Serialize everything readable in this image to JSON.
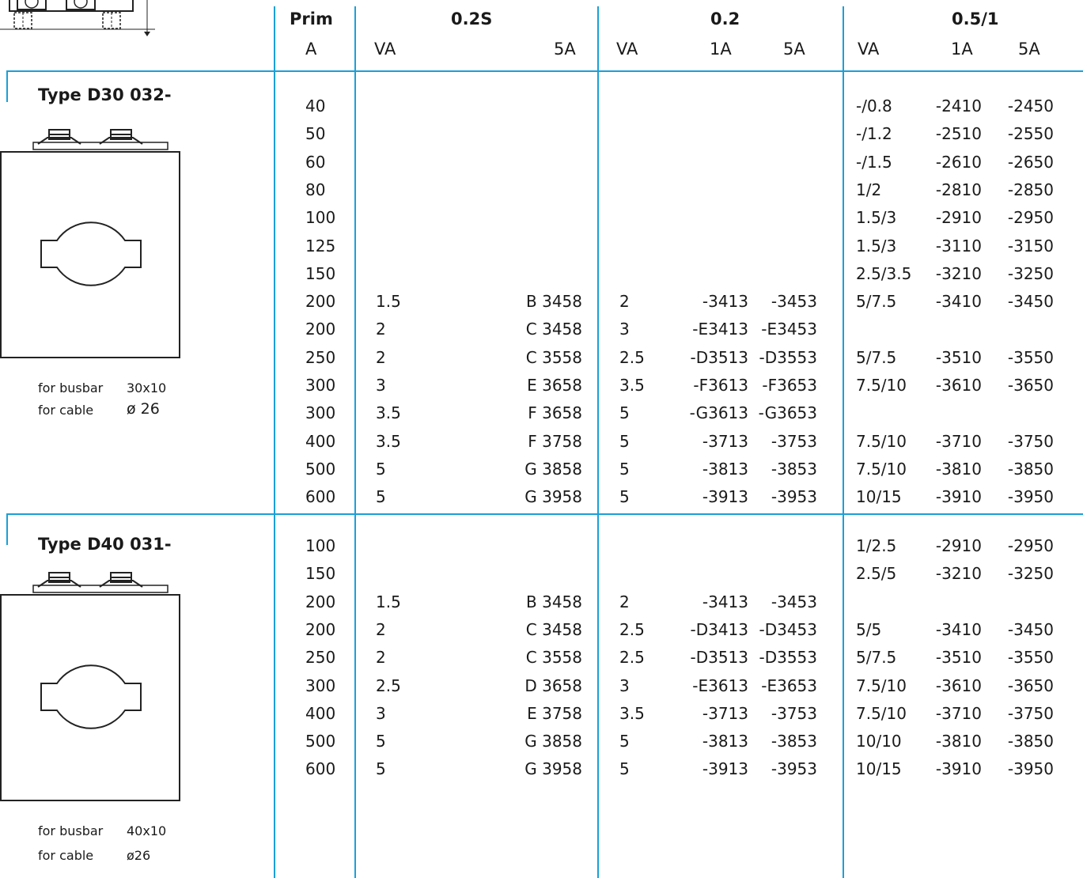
{
  "header": {
    "prim_title": "Prim",
    "prim_unit": "A",
    "groups": [
      {
        "title": "0.2S",
        "subcols": [
          "VA",
          "5A"
        ]
      },
      {
        "title": "0.2",
        "subcols": [
          "VA",
          "1A",
          "5A"
        ]
      },
      {
        "title": "0.5/1",
        "subcols": [
          "VA",
          "1A",
          "5A"
        ]
      }
    ]
  },
  "sections": [
    {
      "type_title": "Type D30 032-",
      "busbar_label": "for busbar",
      "busbar_value": "30x10",
      "cable_label": "for cable",
      "cable_value": "ø 26",
      "rows": [
        [
          "40",
          "",
          "",
          "",
          "",
          "",
          "-/0.8",
          "-2410",
          "-2450"
        ],
        [
          "50",
          "",
          "",
          "",
          "",
          "",
          "-/1.2",
          "-2510",
          "-2550"
        ],
        [
          "60",
          "",
          "",
          "",
          "",
          "",
          "-/1.5",
          "-2610",
          "-2650"
        ],
        [
          "80",
          "",
          "",
          "",
          "",
          "",
          "1/2",
          "-2810",
          "-2850"
        ],
        [
          "100",
          "",
          "",
          "",
          "",
          "",
          "1.5/3",
          "-2910",
          "-2950"
        ],
        [
          "125",
          "",
          "",
          "",
          "",
          "",
          "1.5/3",
          "-3110",
          "-3150"
        ],
        [
          "150",
          "",
          "",
          "",
          "",
          "",
          "2.5/3.5",
          "-3210",
          "-3250"
        ],
        [
          "200",
          "1.5",
          "B 3458",
          "2",
          "-3413",
          "-3453",
          "5/7.5",
          "-3410",
          "-3450"
        ],
        [
          "200",
          "2",
          "C 3458",
          "3",
          "-E3413",
          "-E3453",
          "",
          "",
          ""
        ],
        [
          "250",
          "2",
          "C 3558",
          "2.5",
          "-D3513",
          "-D3553",
          "5/7.5",
          "-3510",
          "-3550"
        ],
        [
          "300",
          "3",
          "E 3658",
          "3.5",
          "-F3613",
          "-F3653",
          "7.5/10",
          "-3610",
          "-3650"
        ],
        [
          "300",
          "3.5",
          "F 3658",
          "5",
          "-G3613",
          "-G3653",
          "",
          "",
          ""
        ],
        [
          "400",
          "3.5",
          "F 3758",
          "5",
          "-3713",
          "-3753",
          "7.5/10",
          "-3710",
          "-3750"
        ],
        [
          "500",
          "5",
          "G 3858",
          "5",
          "-3813",
          "-3853",
          "7.5/10",
          "-3810",
          "-3850"
        ],
        [
          "600",
          "5",
          "G 3958",
          "5",
          "-3913",
          "-3953",
          "10/15",
          "-3910",
          "-3950"
        ]
      ]
    },
    {
      "type_title": "Type D40 031-",
      "busbar_label": "for busbar",
      "busbar_value": "40x10",
      "cable_label": "for cable",
      "cable_value": "ø26",
      "rows": [
        [
          "100",
          "",
          "",
          "",
          "",
          "",
          "1/2.5",
          "-2910",
          "-2950"
        ],
        [
          "150",
          "",
          "",
          "",
          "",
          "",
          "2.5/5",
          "-3210",
          "-3250"
        ],
        [
          "200",
          "1.5",
          "B 3458",
          "2",
          "-3413",
          "-3453",
          "",
          "",
          ""
        ],
        [
          "200",
          "2",
          "C 3458",
          "2.5",
          "-D3413",
          "-D3453",
          "5/5",
          "-3410",
          "-3450"
        ],
        [
          "250",
          "2",
          "C 3558",
          "2.5",
          "-D3513",
          "-D3553",
          "5/7.5",
          "-3510",
          "-3550"
        ],
        [
          "300",
          "2.5",
          "D 3658",
          "3",
          "-E3613",
          "-E3653",
          "7.5/10",
          "-3610",
          "-3650"
        ],
        [
          "400",
          "3",
          "E 3758",
          "3.5",
          "-3713",
          "-3753",
          "7.5/10",
          "-3710",
          "-3750"
        ],
        [
          "500",
          "5",
          "G 3858",
          "5",
          "-3813",
          "-3853",
          "10/10",
          "-3810",
          "-3850"
        ],
        [
          "600",
          "5",
          "G 3958",
          "5",
          "-3913",
          "-3953",
          "10/15",
          "-3910",
          "-3950"
        ]
      ]
    }
  ],
  "colors": {
    "accent": "#1aa0d8",
    "text": "#1a1a1a"
  }
}
